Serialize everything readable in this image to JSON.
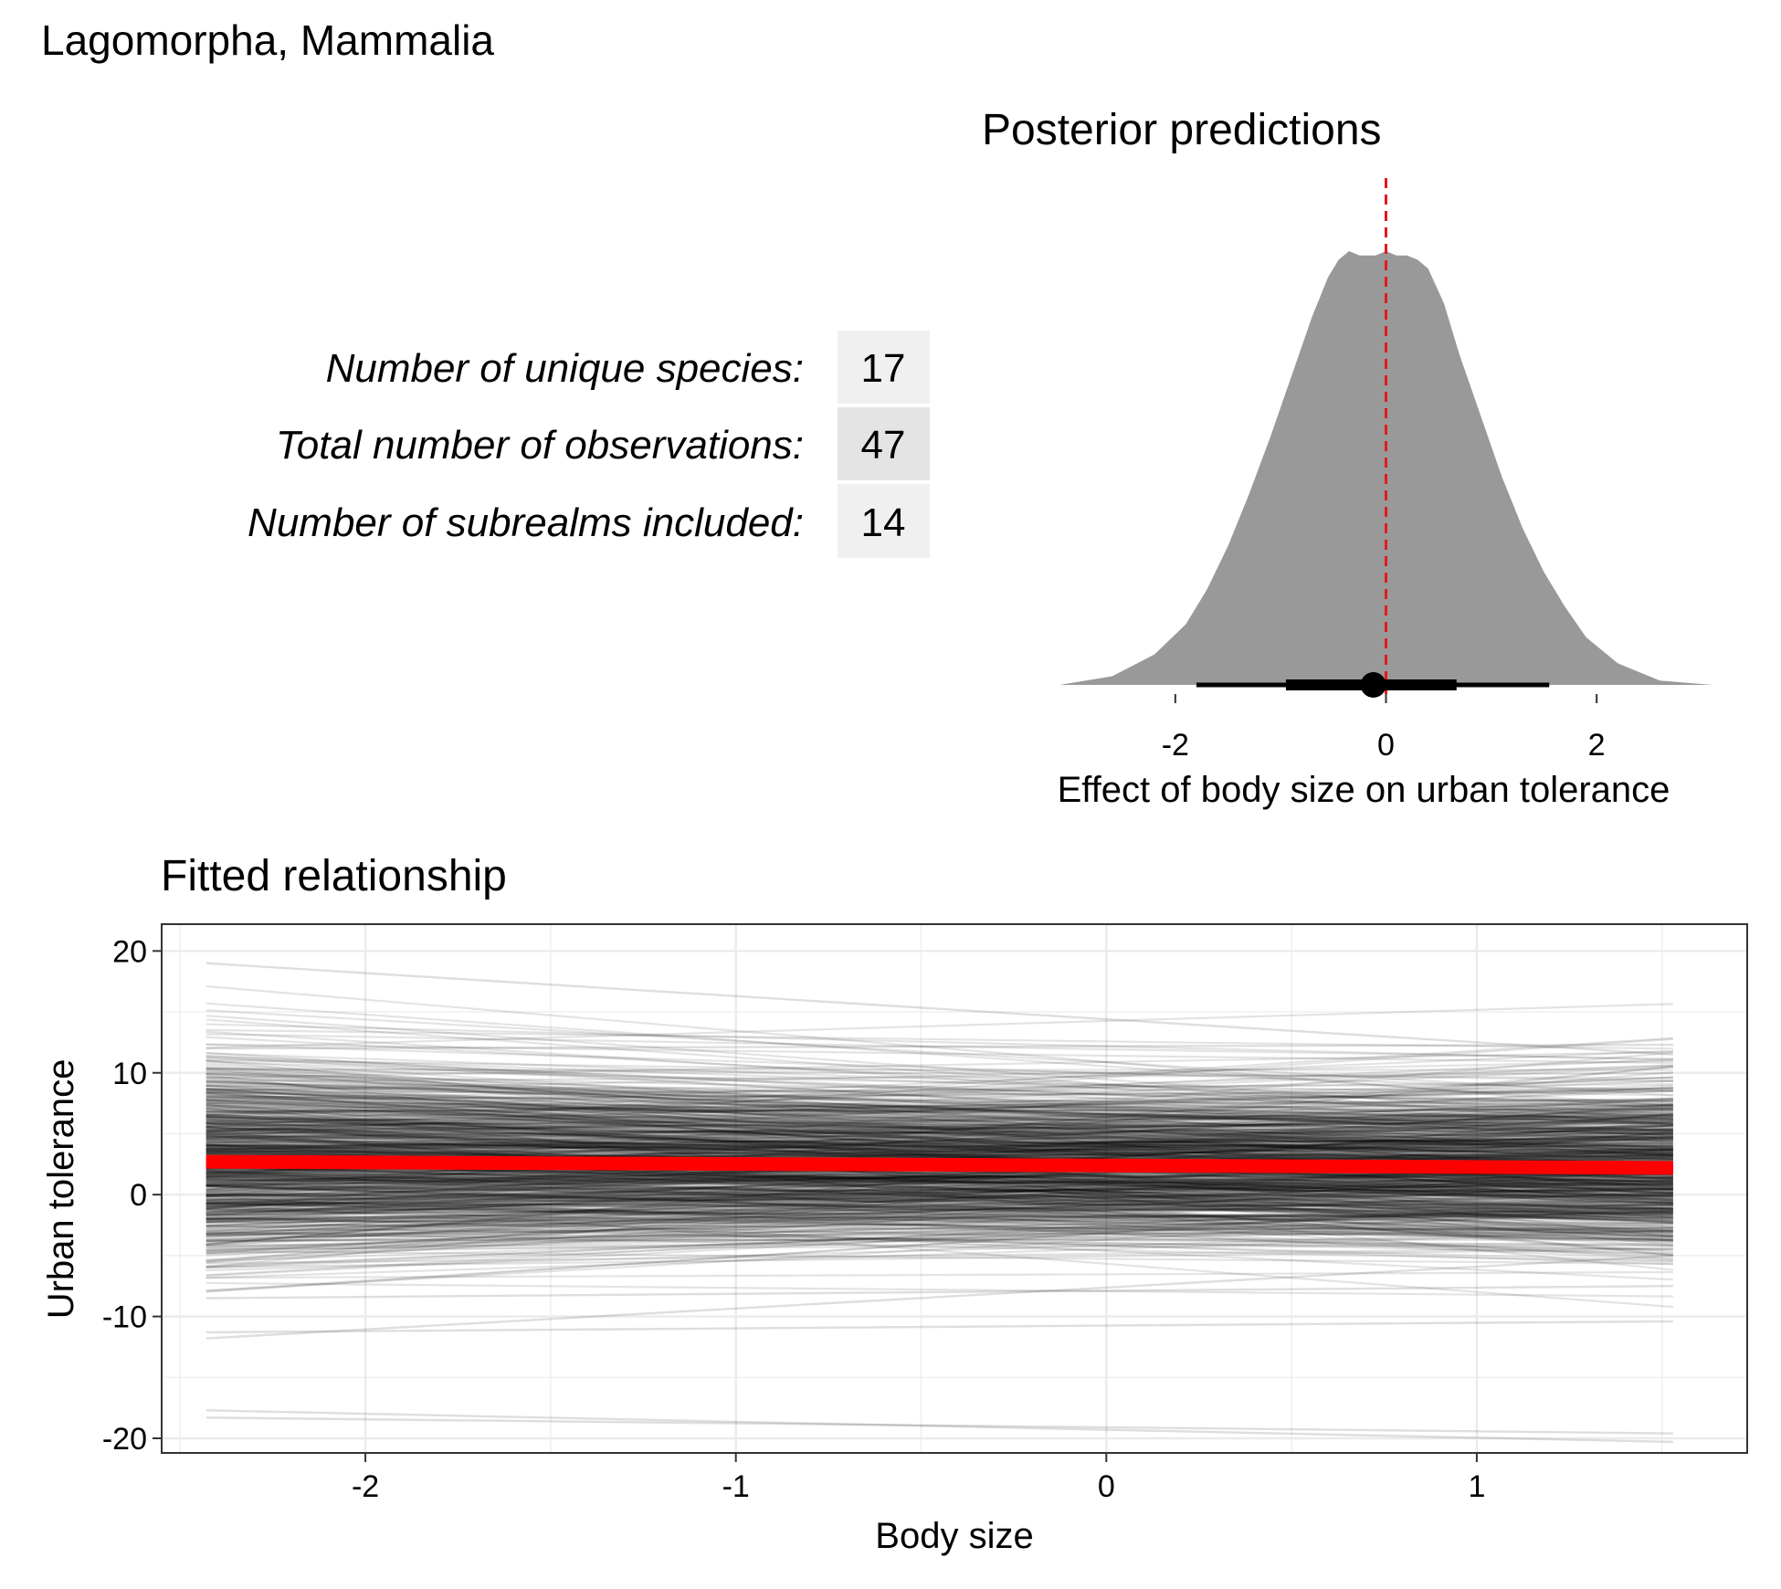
{
  "figure_title": "Lagomorpha, Mammalia",
  "summary_table": {
    "rows": [
      {
        "label": "Number of unique species:",
        "value": "17",
        "fill": "#f0f0f0"
      },
      {
        "label": "Total number of observations:",
        "value": "47",
        "fill": "#e4e4e4"
      },
      {
        "label": "Number of subrealms included:",
        "value": "14",
        "fill": "#f0f0f0"
      }
    ]
  },
  "chart_data": [
    {
      "type": "area",
      "title": "Posterior predictions",
      "xlabel": "Effect of body size on urban tolerance",
      "ylabel": "",
      "xlim": [
        -3.1,
        3.1
      ],
      "x_ticks": [
        -2,
        0,
        2
      ],
      "x_tick_labels": [
        "-2",
        "0",
        "2"
      ],
      "grid": false,
      "density_color": "#999999",
      "density": {
        "x": [
          -3.1,
          -2.6,
          -2.2,
          -1.9,
          -1.7,
          -1.5,
          -1.3,
          -1.1,
          -0.9,
          -0.7,
          -0.55,
          -0.45,
          -0.35,
          -0.25,
          -0.1,
          0.0,
          0.1,
          0.2,
          0.3,
          0.4,
          0.55,
          0.7,
          0.9,
          1.1,
          1.3,
          1.5,
          1.7,
          1.9,
          2.2,
          2.6,
          3.1
        ],
        "y": [
          0.0,
          0.02,
          0.07,
          0.14,
          0.22,
          0.32,
          0.44,
          0.57,
          0.71,
          0.85,
          0.94,
          0.98,
          1.0,
          0.99,
          0.99,
          1.0,
          0.99,
          0.99,
          0.98,
          0.96,
          0.88,
          0.76,
          0.62,
          0.48,
          0.36,
          0.26,
          0.18,
          0.11,
          0.05,
          0.01,
          0.0
        ]
      },
      "reference_line": {
        "x": 0,
        "color": "#e31a1c",
        "style": "dashed"
      },
      "point_interval": {
        "point": -0.12,
        "inner_interval": [
          -0.95,
          0.67
        ],
        "outer_interval": [
          -1.8,
          1.55
        ]
      }
    },
    {
      "type": "line",
      "title": "Fitted relationship",
      "xlabel": "Body size",
      "ylabel": "Urban tolerance",
      "xlim": [
        -2.55,
        1.73
      ],
      "ylim": [
        -21.2,
        22.2
      ],
      "x_ticks": [
        -2,
        -1,
        0,
        1
      ],
      "x_tick_labels": [
        "-2",
        "-1",
        "0",
        "1"
      ],
      "y_ticks": [
        -20,
        -10,
        0,
        10,
        20
      ],
      "y_tick_labels": [
        "-20",
        "-10",
        "0",
        "10",
        "20"
      ],
      "grid": true,
      "x_range": [
        -2.43,
        1.53
      ],
      "mean_line": {
        "color": "#ff0000",
        "y_at_start": 2.7,
        "y_at_end": 2.2
      },
      "posterior_draw_color": "#000000",
      "posterior_draws_highlighted": [
        {
          "y_at_start": 19.0,
          "y_at_end": 11.5
        },
        {
          "y_at_start": 12.0,
          "y_at_end": 12.3
        },
        {
          "y_at_start": -8.5,
          "y_at_end": -7.5
        },
        {
          "y_at_start": -11.8,
          "y_at_end": -5.0
        },
        {
          "y_at_start": -11.3,
          "y_at_end": -10.4
        },
        {
          "y_at_start": -17.7,
          "y_at_end": -20.3
        },
        {
          "y_at_start": -18.3,
          "y_at_end": -19.6
        }
      ]
    }
  ]
}
